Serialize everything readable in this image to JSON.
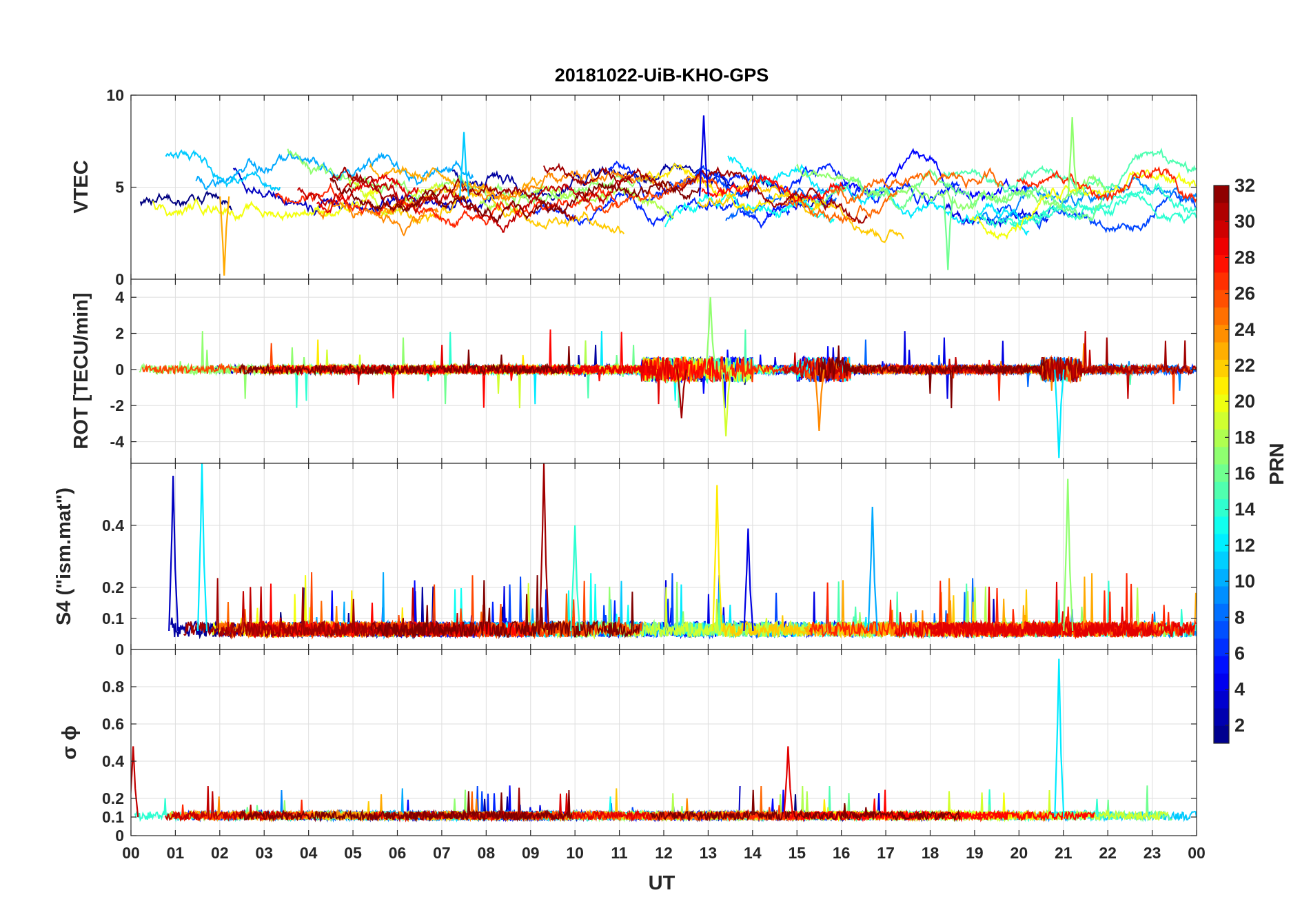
{
  "chart_data": {
    "type": "line",
    "title": "20181022-UiB-KHO-GPS",
    "xlabel": "UT",
    "x_ticks": [
      "00",
      "01",
      "02",
      "03",
      "04",
      "05",
      "06",
      "07",
      "08",
      "09",
      "10",
      "11",
      "12",
      "13",
      "14",
      "15",
      "16",
      "17",
      "18",
      "19",
      "20",
      "21",
      "22",
      "23",
      "00"
    ],
    "xlim_hours": [
      0,
      24
    ],
    "colorbar": {
      "label": "PRN",
      "range": [
        1,
        32
      ],
      "ticks": [
        "2",
        "4",
        "6",
        "8",
        "10",
        "12",
        "14",
        "16",
        "18",
        "20",
        "22",
        "24",
        "26",
        "28",
        "30",
        "32"
      ],
      "colormap": "jet"
    },
    "panels": [
      {
        "name": "vtec",
        "ylabel": "VTEC",
        "ylim": [
          0,
          10
        ],
        "y_ticks": [
          "0",
          "5",
          "10"
        ],
        "y_tick_values": [
          0,
          5,
          10
        ],
        "baseline": 4.5,
        "series_summary": "32 PRN tracks; VTEC mostly 3-7 TECU, peaks near 9 at 12-13 UT (PRN 4), near 9 at 21.2 UT (PRN 17)"
      },
      {
        "name": "rot",
        "ylabel": "ROT [TECU/min]",
        "ylim": [
          -5.2,
          5
        ],
        "y_ticks": [
          "-4",
          "-2",
          "0",
          "2",
          "4"
        ],
        "y_tick_values": [
          -4,
          -2,
          0,
          2,
          4
        ],
        "baseline": 0,
        "series_summary": "ROT mostly within +/-1; spikes to about +4 and -3.7 around 13 UT, -4.9 near 20.9 UT"
      },
      {
        "name": "s4",
        "ylabel": "S4 (\"ism.mat\")",
        "ylim": [
          0,
          0.6
        ],
        "y_ticks": [
          "0",
          "0.1",
          "0.2",
          "0.4"
        ],
        "y_tick_values": [
          0,
          0.1,
          0.2,
          0.4
        ],
        "baseline": 0.06,
        "series_summary": "S4 mostly 0.03-0.15; spikes to 0.6 at 9.3 UT (PRN 31), 0.6 at 1.6 UT (PRN 12), 0.55 at 21.1 UT"
      },
      {
        "name": "sigma_phi",
        "ylabel": "σ ϕ",
        "ylim": [
          0,
          1
        ],
        "y_ticks": [
          "0",
          "0.1",
          "0.2",
          "0.4",
          "0.6",
          "0.8"
        ],
        "y_tick_values": [
          0,
          0.1,
          0.2,
          0.4,
          0.6,
          0.8
        ],
        "baseline": 0.1,
        "series_summary": "Sigma-phi mostly 0.08-0.15; spikes to 0.95 at 20.9 UT (PRN 12), 0.48 at 14.8 UT, 0.48 at 0.05 UT"
      }
    ],
    "series_peaks": [
      {
        "panel": "vtec",
        "prn": 4,
        "t": 12.9,
        "v": 8.9
      },
      {
        "panel": "vtec",
        "prn": 17,
        "t": 21.2,
        "v": 8.8
      },
      {
        "panel": "vtec",
        "prn": 11,
        "t": 7.5,
        "v": 8.0
      },
      {
        "panel": "vtec",
        "prn": 16,
        "t": 18.4,
        "v": 0.5
      },
      {
        "panel": "vtec",
        "prn": 23,
        "t": 2.1,
        "v": 0.2
      },
      {
        "panel": "rot",
        "prn": 17,
        "t": 13.05,
        "v": 4.0
      },
      {
        "panel": "rot",
        "prn": 19,
        "t": 13.4,
        "v": -3.7
      },
      {
        "panel": "rot",
        "prn": 12,
        "t": 20.9,
        "v": -4.9
      },
      {
        "panel": "rot",
        "prn": 31,
        "t": 12.4,
        "v": -2.7
      },
      {
        "panel": "rot",
        "prn": 24,
        "t": 15.5,
        "v": -3.4
      },
      {
        "panel": "s4",
        "prn": 31,
        "t": 9.3,
        "v": 0.6
      },
      {
        "panel": "s4",
        "prn": 12,
        "t": 1.6,
        "v": 0.6
      },
      {
        "panel": "s4",
        "prn": 3,
        "t": 0.95,
        "v": 0.56
      },
      {
        "panel": "s4",
        "prn": 17,
        "t": 21.1,
        "v": 0.55
      },
      {
        "panel": "s4",
        "prn": 21,
        "t": 13.2,
        "v": 0.53
      },
      {
        "panel": "s4",
        "prn": 10,
        "t": 16.7,
        "v": 0.46
      },
      {
        "panel": "s4",
        "prn": 4,
        "t": 13.9,
        "v": 0.39
      },
      {
        "panel": "s4",
        "prn": 14,
        "t": 10.0,
        "v": 0.4
      },
      {
        "panel": "sigma_phi",
        "prn": 12,
        "t": 20.9,
        "v": 0.95
      },
      {
        "panel": "sigma_phi",
        "prn": 29,
        "t": 14.8,
        "v": 0.48
      },
      {
        "panel": "sigma_phi",
        "prn": 30,
        "t": 0.05,
        "v": 0.48
      }
    ]
  }
}
